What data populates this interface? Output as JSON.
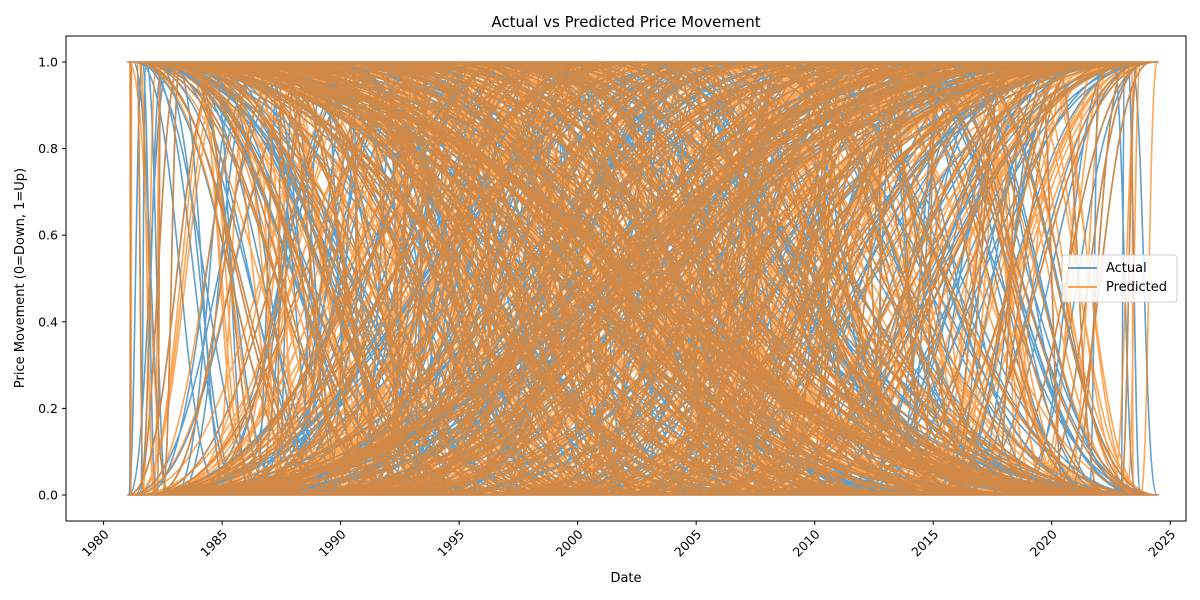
{
  "chart_data": {
    "type": "line",
    "title": "Actual vs Predicted Price Movement",
    "xlabel": "Date",
    "ylabel": "Price Movement (0=Down, 1=Up)",
    "xlim": [
      "1978-06-01",
      "2025-09-01"
    ],
    "ylim": [
      -0.06,
      1.06
    ],
    "x_ticks": [
      "1980",
      "1985",
      "1990",
      "1995",
      "2000",
      "2005",
      "2010",
      "2015",
      "2020",
      "2025"
    ],
    "y_ticks": [
      "0.0",
      "0.2",
      "0.4",
      "0.6",
      "0.8",
      "1.0"
    ],
    "x_range": [
      "1981-01-01",
      "2024-07-01"
    ],
    "values_binary": [
      0,
      1
    ],
    "grid": false,
    "legend_position": "center right",
    "series": [
      {
        "name": "Actual",
        "color": "#1f77b4",
        "opacity": 0.7
      },
      {
        "name": "Predicted",
        "color": "#ff7f0e",
        "opacity": 0.7
      }
    ]
  }
}
